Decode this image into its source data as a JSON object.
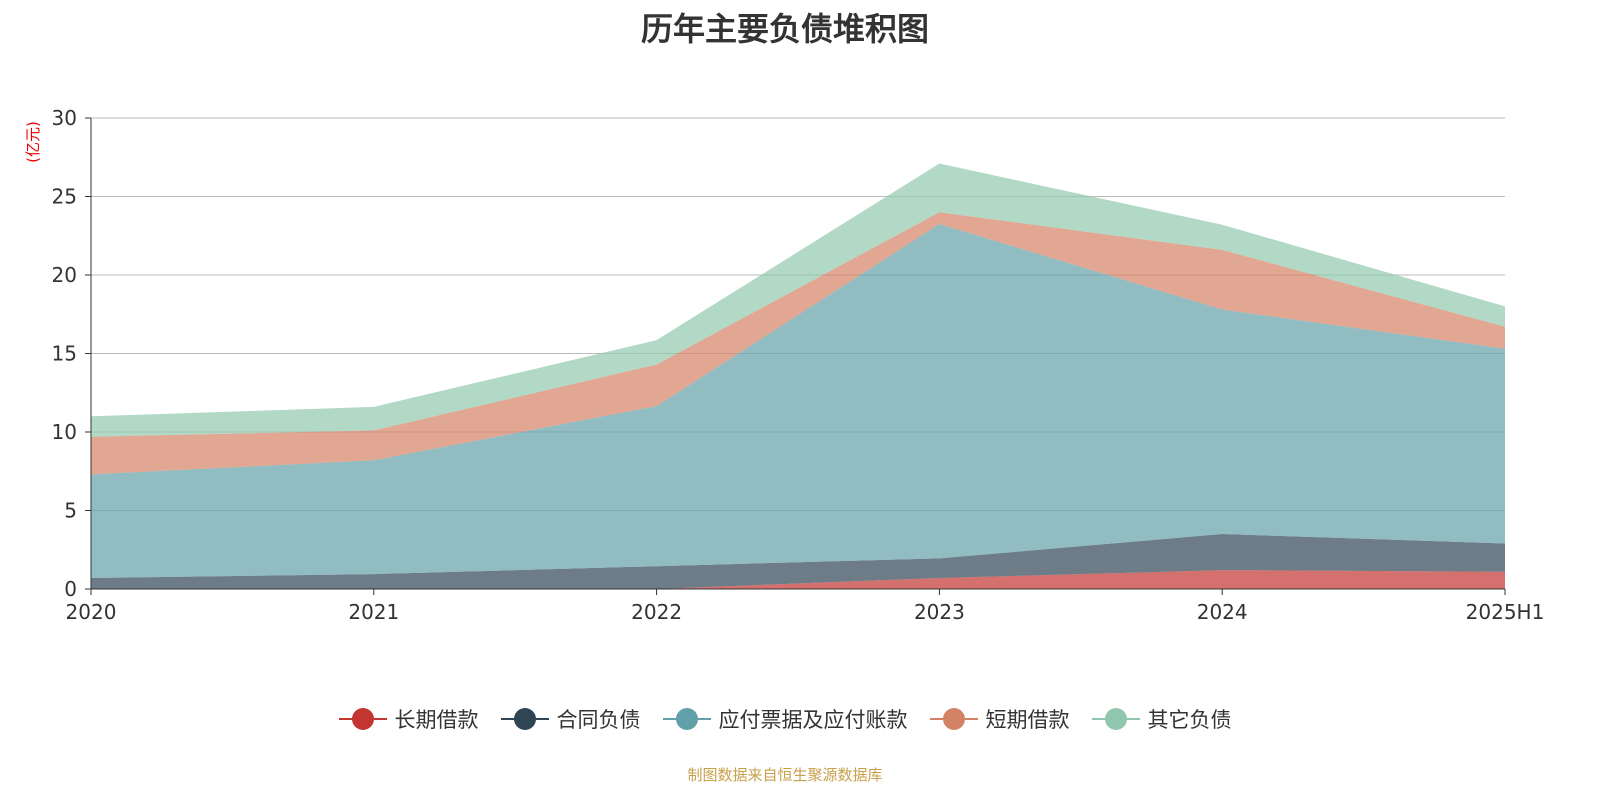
{
  "chart_data": {
    "type": "area",
    "stacked": true,
    "title": "历年主要负债堆积图",
    "ylabel": "(亿元)",
    "xlabel": "",
    "categories": [
      "2020",
      "2021",
      "2022",
      "2023",
      "2024",
      "2025H1"
    ],
    "ylim": [
      0,
      30
    ],
    "yticks": [
      0,
      5,
      10,
      15,
      20,
      25,
      30
    ],
    "grid": true,
    "legend_position": "bottom",
    "series": [
      {
        "name": "长期借款",
        "color": "#c23531",
        "values": [
          0,
          0,
          0,
          0.7,
          1.2,
          1.1
        ]
      },
      {
        "name": "合同负债",
        "color": "#2f4554",
        "values": [
          0.7,
          0.95,
          1.45,
          1.25,
          2.3,
          1.8
        ]
      },
      {
        "name": "应付票据及应付账款",
        "color": "#61a0a8",
        "values": [
          6.6,
          7.25,
          10.2,
          21.3,
          14.3,
          12.4
        ]
      },
      {
        "name": "短期借款",
        "color": "#d48265",
        "values": [
          2.4,
          1.9,
          2.65,
          0.75,
          3.8,
          1.4
        ]
      },
      {
        "name": "其它负债",
        "color": "#91c7ae",
        "values": [
          1.3,
          1.5,
          1.55,
          3.1,
          1.6,
          1.3
        ]
      }
    ]
  },
  "source": "制图数据来自恒生聚源数据库"
}
